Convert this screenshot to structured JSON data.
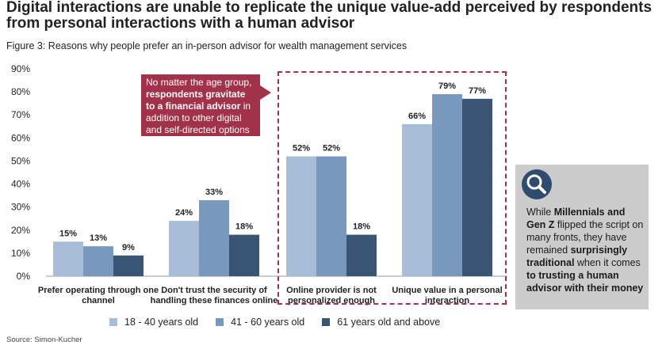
{
  "headline": "Digital interactions are unable to replicate the unique value-add perceived by respondents from personal interactions with a human advisor",
  "figure_caption": "Figure 3: Reasons why people prefer an in-person advisor for wealth management services",
  "callout": {
    "text_before": "No matter the age group, ",
    "text_bold": "respondents gravitate to a financial advisor",
    "text_after": " in addition to other digital and self-directed options"
  },
  "insight": {
    "icon": "magnifier-icon",
    "p1": "While ",
    "b1": "Millennials and Gen Z",
    "p2": " flipped the script on many fronts, they have remained ",
    "b2": "surprisingly traditional",
    "p3": " when it comes ",
    "b3": "to trusting a human advisor with their money"
  },
  "source": "Source: Simon-Kucher",
  "colors": {
    "series1": "#a7bcd6",
    "series2": "#7898bd",
    "series3": "#3a5574",
    "accent": "#a23249",
    "panel": "#cccccc"
  },
  "chart_data": {
    "type": "bar",
    "title": "Reasons why people prefer an in-person advisor for wealth management services",
    "categories": [
      "Prefer operating through one channel",
      "Don't trust the security of handling these finances online",
      "Online provider is not personalized enough",
      "Unique value in a personal interaction"
    ],
    "series": [
      {
        "name": "18 - 40 years old",
        "values": [
          15,
          24,
          52,
          66
        ]
      },
      {
        "name": "41 - 60 years old",
        "values": [
          13,
          33,
          52,
          79
        ]
      },
      {
        "name": "61 years old and above",
        "values": [
          9,
          18,
          18,
          77
        ]
      }
    ],
    "value_labels": [
      [
        "15%",
        "24%",
        "52%",
        "66%"
      ],
      [
        "13%",
        "33%",
        "52%",
        "79%"
      ],
      [
        "9%",
        "18%",
        "18%",
        "77%"
      ]
    ],
    "yticks": [
      "0%",
      "10%",
      "20%",
      "30%",
      "40%",
      "50%",
      "60%",
      "70%",
      "80%",
      "90%"
    ],
    "ylim": [
      0,
      90
    ],
    "grid": false,
    "legend_position": "bottom"
  }
}
